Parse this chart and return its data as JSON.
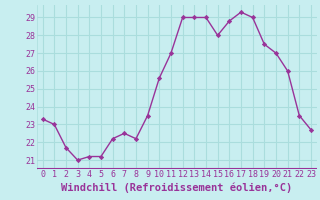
{
  "x": [
    0,
    1,
    2,
    3,
    4,
    5,
    6,
    7,
    8,
    9,
    10,
    11,
    12,
    13,
    14,
    15,
    16,
    17,
    18,
    19,
    20,
    21,
    22,
    23
  ],
  "y": [
    23.3,
    23.0,
    21.7,
    21.0,
    21.2,
    21.2,
    22.2,
    22.5,
    22.2,
    23.5,
    25.6,
    27.0,
    29.0,
    29.0,
    29.0,
    28.0,
    28.8,
    29.3,
    29.0,
    27.5,
    27.0,
    26.0,
    23.5,
    22.7
  ],
  "line_color": "#993399",
  "marker": "D",
  "marker_size": 2.2,
  "bg_color": "#c8eef0",
  "grid_color": "#aadddd",
  "xlabel": "Windchill (Refroidissement éolien,°C)",
  "xlabel_color": "#993399",
  "tick_color": "#993399",
  "ylim": [
    20.5,
    29.7
  ],
  "xlim": [
    -0.5,
    23.5
  ],
  "yticks": [
    21,
    22,
    23,
    24,
    25,
    26,
    27,
    28,
    29
  ],
  "xticks": [
    0,
    1,
    2,
    3,
    4,
    5,
    6,
    7,
    8,
    9,
    10,
    11,
    12,
    13,
    14,
    15,
    16,
    17,
    18,
    19,
    20,
    21,
    22,
    23
  ],
  "tick_fontsize": 6.0,
  "xlabel_fontsize": 7.5,
  "linewidth": 1.0,
  "spine_color": "#993399"
}
